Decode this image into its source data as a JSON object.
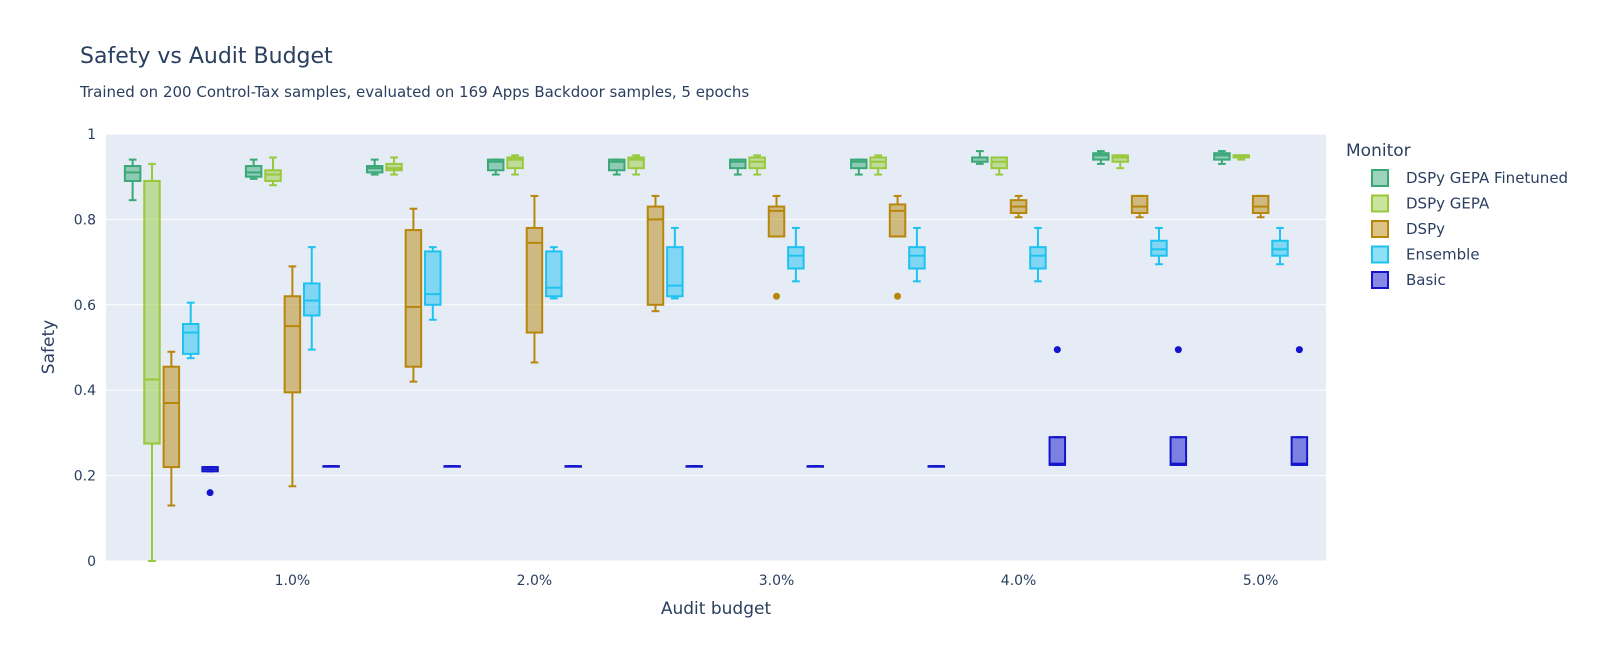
{
  "chart_data": {
    "type": "box",
    "title": "Safety vs Audit Budget",
    "subtitle": "Trained on 200 Control-Tax samples, evaluated on 169 Apps Backdoor samples, 5 epochs",
    "xlabel": "Audit budget",
    "ylabel": "Safety",
    "ylim": [
      0,
      1
    ],
    "yticks": [
      {
        "value": 0,
        "label": "0"
      },
      {
        "value": 0.2,
        "label": "0.2"
      },
      {
        "value": 0.4,
        "label": "0.4"
      },
      {
        "value": 0.6,
        "label": "0.6"
      },
      {
        "value": 0.8,
        "label": "0.8"
      },
      {
        "value": 1,
        "label": "1"
      }
    ],
    "xticks": [
      {
        "value": 1.0,
        "label": "1.0%"
      },
      {
        "value": 2.0,
        "label": "2.0%"
      },
      {
        "value": 3.0,
        "label": "3.0%"
      },
      {
        "value": 4.0,
        "label": "4.0%"
      },
      {
        "value": 5.0,
        "label": "5.0%"
      }
    ],
    "categories": [
      0.5,
      1.0,
      1.5,
      2.0,
      2.5,
      3.0,
      3.5,
      4.0,
      4.5,
      5.0
    ],
    "grid": true,
    "legend": {
      "title": "Monitor",
      "position": "right"
    },
    "series": [
      {
        "name": "DSPy GEPA Finetuned",
        "color": "#3aa876",
        "boxes": [
          {
            "lowerfence": 0.845,
            "q1": 0.89,
            "median": 0.91,
            "q3": 0.925,
            "upperfence": 0.94,
            "outliers": []
          },
          {
            "lowerfence": 0.895,
            "q1": 0.9,
            "median": 0.91,
            "q3": 0.925,
            "upperfence": 0.94,
            "outliers": []
          },
          {
            "lowerfence": 0.905,
            "q1": 0.91,
            "median": 0.92,
            "q3": 0.925,
            "upperfence": 0.94,
            "outliers": []
          },
          {
            "lowerfence": 0.905,
            "q1": 0.915,
            "median": 0.935,
            "q3": 0.94,
            "upperfence": 0.94,
            "outliers": []
          },
          {
            "lowerfence": 0.905,
            "q1": 0.915,
            "median": 0.935,
            "q3": 0.94,
            "upperfence": 0.94,
            "outliers": []
          },
          {
            "lowerfence": 0.905,
            "q1": 0.92,
            "median": 0.935,
            "q3": 0.94,
            "upperfence": 0.94,
            "outliers": []
          },
          {
            "lowerfence": 0.905,
            "q1": 0.92,
            "median": 0.935,
            "q3": 0.94,
            "upperfence": 0.94,
            "outliers": []
          },
          {
            "lowerfence": 0.93,
            "q1": 0.935,
            "median": 0.945,
            "q3": 0.945,
            "upperfence": 0.96,
            "outliers": []
          },
          {
            "lowerfence": 0.93,
            "q1": 0.94,
            "median": 0.95,
            "q3": 0.955,
            "upperfence": 0.96,
            "outliers": []
          },
          {
            "lowerfence": 0.93,
            "q1": 0.94,
            "median": 0.95,
            "q3": 0.955,
            "upperfence": 0.96,
            "outliers": []
          }
        ]
      },
      {
        "name": "DSPy GEPA",
        "color": "#98c93c",
        "boxes": [
          {
            "lowerfence": 0.0,
            "q1": 0.275,
            "median": 0.425,
            "q3": 0.89,
            "upperfence": 0.93,
            "outliers": []
          },
          {
            "lowerfence": 0.88,
            "q1": 0.89,
            "median": 0.905,
            "q3": 0.915,
            "upperfence": 0.945,
            "outliers": []
          },
          {
            "lowerfence": 0.905,
            "q1": 0.915,
            "median": 0.92,
            "q3": 0.93,
            "upperfence": 0.945,
            "outliers": []
          },
          {
            "lowerfence": 0.905,
            "q1": 0.92,
            "median": 0.94,
            "q3": 0.945,
            "upperfence": 0.95,
            "outliers": []
          },
          {
            "lowerfence": 0.905,
            "q1": 0.92,
            "median": 0.94,
            "q3": 0.945,
            "upperfence": 0.95,
            "outliers": []
          },
          {
            "lowerfence": 0.905,
            "q1": 0.92,
            "median": 0.935,
            "q3": 0.945,
            "upperfence": 0.95,
            "outliers": []
          },
          {
            "lowerfence": 0.905,
            "q1": 0.92,
            "median": 0.935,
            "q3": 0.945,
            "upperfence": 0.95,
            "outliers": []
          },
          {
            "lowerfence": 0.905,
            "q1": 0.92,
            "median": 0.935,
            "q3": 0.945,
            "upperfence": 0.945,
            "outliers": []
          },
          {
            "lowerfence": 0.92,
            "q1": 0.935,
            "median": 0.945,
            "q3": 0.95,
            "upperfence": 0.95,
            "outliers": []
          },
          {
            "lowerfence": 0.94,
            "q1": 0.945,
            "median": 0.95,
            "q3": 0.95,
            "upperfence": 0.95,
            "outliers": []
          }
        ]
      },
      {
        "name": "DSPy",
        "color": "#b8860b",
        "boxes": [
          {
            "lowerfence": 0.13,
            "q1": 0.22,
            "median": 0.37,
            "q3": 0.455,
            "upperfence": 0.49,
            "outliers": []
          },
          {
            "lowerfence": 0.175,
            "q1": 0.395,
            "median": 0.55,
            "q3": 0.62,
            "upperfence": 0.69,
            "outliers": []
          },
          {
            "lowerfence": 0.42,
            "q1": 0.455,
            "median": 0.595,
            "q3": 0.775,
            "upperfence": 0.825,
            "outliers": []
          },
          {
            "lowerfence": 0.465,
            "q1": 0.535,
            "median": 0.745,
            "q3": 0.78,
            "upperfence": 0.855,
            "outliers": []
          },
          {
            "lowerfence": 0.585,
            "q1": 0.6,
            "median": 0.8,
            "q3": 0.83,
            "upperfence": 0.855,
            "outliers": []
          },
          {
            "lowerfence": 0.76,
            "q1": 0.76,
            "median": 0.82,
            "q3": 0.83,
            "upperfence": 0.855,
            "outliers": [
              0.62
            ]
          },
          {
            "lowerfence": 0.76,
            "q1": 0.76,
            "median": 0.82,
            "q3": 0.835,
            "upperfence": 0.855,
            "outliers": [
              0.62
            ]
          },
          {
            "lowerfence": 0.805,
            "q1": 0.815,
            "median": 0.83,
            "q3": 0.845,
            "upperfence": 0.855,
            "outliers": []
          },
          {
            "lowerfence": 0.805,
            "q1": 0.815,
            "median": 0.83,
            "q3": 0.855,
            "upperfence": 0.855,
            "outliers": []
          },
          {
            "lowerfence": 0.805,
            "q1": 0.815,
            "median": 0.83,
            "q3": 0.855,
            "upperfence": 0.855,
            "outliers": []
          }
        ]
      },
      {
        "name": "Ensemble",
        "color": "#1ec2f0",
        "boxes": [
          {
            "lowerfence": 0.475,
            "q1": 0.485,
            "median": 0.535,
            "q3": 0.555,
            "upperfence": 0.605,
            "outliers": []
          },
          {
            "lowerfence": 0.495,
            "q1": 0.575,
            "median": 0.61,
            "q3": 0.65,
            "upperfence": 0.735,
            "outliers": []
          },
          {
            "lowerfence": 0.565,
            "q1": 0.6,
            "median": 0.625,
            "q3": 0.725,
            "upperfence": 0.735,
            "outliers": []
          },
          {
            "lowerfence": 0.615,
            "q1": 0.62,
            "median": 0.64,
            "q3": 0.725,
            "upperfence": 0.735,
            "outliers": []
          },
          {
            "lowerfence": 0.615,
            "q1": 0.62,
            "median": 0.645,
            "q3": 0.735,
            "upperfence": 0.78,
            "outliers": []
          },
          {
            "lowerfence": 0.655,
            "q1": 0.685,
            "median": 0.715,
            "q3": 0.735,
            "upperfence": 0.78,
            "outliers": []
          },
          {
            "lowerfence": 0.655,
            "q1": 0.685,
            "median": 0.715,
            "q3": 0.735,
            "upperfence": 0.78,
            "outliers": []
          },
          {
            "lowerfence": 0.655,
            "q1": 0.685,
            "median": 0.715,
            "q3": 0.735,
            "upperfence": 0.78,
            "outliers": []
          },
          {
            "lowerfence": 0.695,
            "q1": 0.715,
            "median": 0.73,
            "q3": 0.75,
            "upperfence": 0.78,
            "outliers": []
          },
          {
            "lowerfence": 0.695,
            "q1": 0.715,
            "median": 0.73,
            "q3": 0.75,
            "upperfence": 0.78,
            "outliers": []
          }
        ]
      },
      {
        "name": "Basic",
        "color": "#1414cc",
        "boxes": [
          {
            "lowerfence": 0.21,
            "q1": 0.21,
            "median": 0.215,
            "q3": 0.22,
            "upperfence": 0.22,
            "outliers": [
              0.16
            ]
          },
          {
            "lowerfence": 0.222,
            "q1": 0.222,
            "median": 0.222,
            "q3": 0.222,
            "upperfence": 0.222,
            "outliers": []
          },
          {
            "lowerfence": 0.222,
            "q1": 0.222,
            "median": 0.222,
            "q3": 0.222,
            "upperfence": 0.222,
            "outliers": []
          },
          {
            "lowerfence": 0.222,
            "q1": 0.222,
            "median": 0.222,
            "q3": 0.222,
            "upperfence": 0.222,
            "outliers": []
          },
          {
            "lowerfence": 0.222,
            "q1": 0.222,
            "median": 0.222,
            "q3": 0.222,
            "upperfence": 0.222,
            "outliers": []
          },
          {
            "lowerfence": 0.222,
            "q1": 0.222,
            "median": 0.222,
            "q3": 0.222,
            "upperfence": 0.222,
            "outliers": []
          },
          {
            "lowerfence": 0.222,
            "q1": 0.222,
            "median": 0.222,
            "q3": 0.222,
            "upperfence": 0.222,
            "outliers": []
          },
          {
            "lowerfence": 0.225,
            "q1": 0.225,
            "median": 0.228,
            "q3": 0.29,
            "upperfence": 0.29,
            "outliers": [
              0.495
            ]
          },
          {
            "lowerfence": 0.225,
            "q1": 0.225,
            "median": 0.228,
            "q3": 0.29,
            "upperfence": 0.29,
            "outliers": [
              0.495
            ]
          },
          {
            "lowerfence": 0.225,
            "q1": 0.225,
            "median": 0.228,
            "q3": 0.29,
            "upperfence": 0.29,
            "outliers": [
              0.495
            ]
          }
        ]
      }
    ]
  }
}
